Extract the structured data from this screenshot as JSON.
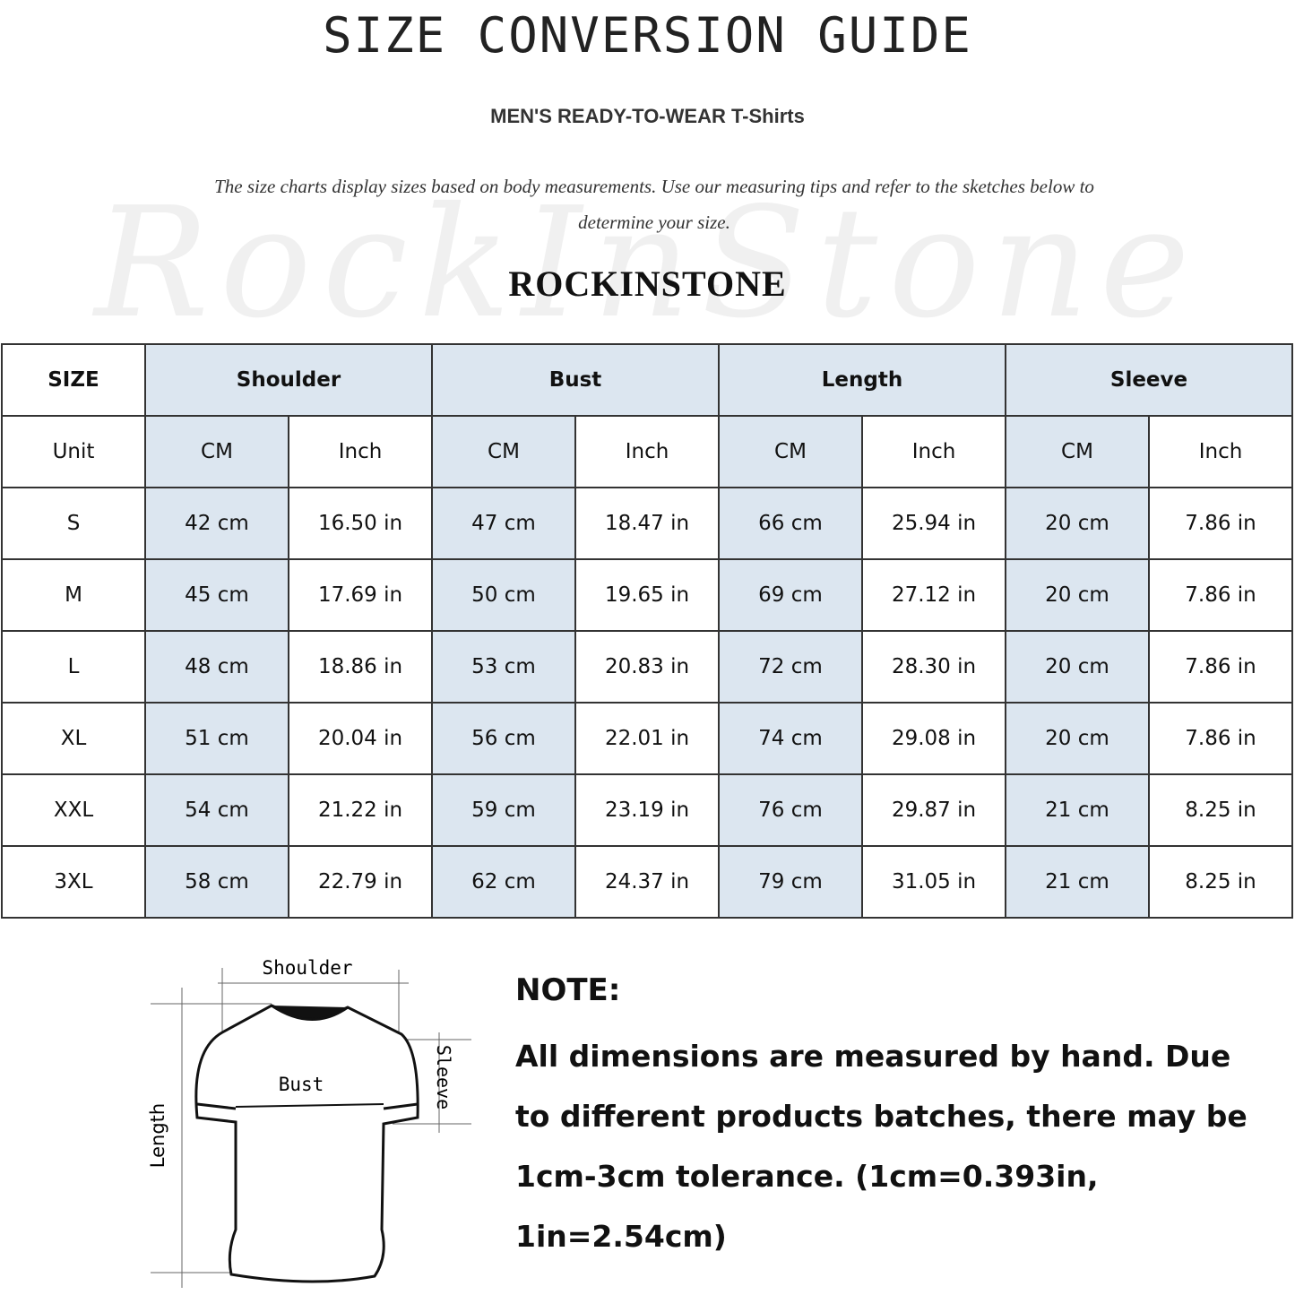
{
  "title": "SIZE CONVERSION GUIDE",
  "subtitle": "MEN'S READY-TO-WEAR T-Shirts",
  "description": "The size charts display sizes based on body measurements. Use our measuring tips and refer to the sketches below to determine your size.",
  "watermark": "RockInStone",
  "brand": "ROCKINSTONE",
  "table": {
    "size_header": "SIZE",
    "groups": [
      "Shoulder",
      "Bust",
      "Length",
      "Sleeve"
    ],
    "unit_label": "Unit",
    "units": [
      "CM",
      "Inch",
      "CM",
      "Inch",
      "CM",
      "Inch",
      "CM",
      "Inch"
    ],
    "rows": [
      {
        "size": "S",
        "values": [
          "42 cm",
          "16.50 in",
          "47 cm",
          "18.47  in",
          "66 cm",
          "25.94  in",
          "20 cm",
          "7.86  in"
        ]
      },
      {
        "size": "M",
        "values": [
          "45 cm",
          "17.69  in",
          "50 cm",
          "19.65  in",
          "69 cm",
          "27.12  in",
          "20 cm",
          "7.86  in"
        ]
      },
      {
        "size": "L",
        "values": [
          "48 cm",
          "18.86  in",
          "53 cm",
          "20.83  in",
          "72 cm",
          "28.30  in",
          "20 cm",
          "7.86  in"
        ]
      },
      {
        "size": "XL",
        "values": [
          "51 cm",
          "20.04  in",
          "56 cm",
          "22.01  in",
          "74 cm",
          "29.08  in",
          "20 cm",
          "7.86  in"
        ]
      },
      {
        "size": "XXL",
        "values": [
          "54 cm",
          "21.22  in",
          "59 cm",
          "23.19  in",
          "76 cm",
          "29.87  in",
          "21 cm",
          "8.25  in"
        ]
      },
      {
        "size": "3XL",
        "values": [
          "58 cm",
          "22.79  in",
          "62 cm",
          "24.37  in",
          "79 cm",
          "31.05  in",
          "21 cm",
          "8.25  in"
        ]
      }
    ],
    "highlight_color": "#dce6f0"
  },
  "diagram": {
    "shoulder": "Shoulder",
    "bust": "Bust",
    "sleeve": "Sleeve",
    "length": "Length"
  },
  "note": {
    "heading": "NOTE:",
    "text": "All dimensions are measured by hand. Due to different products batches, there may be 1cm-3cm tolerance. (1cm=0.393in, 1in=2.54cm)"
  }
}
